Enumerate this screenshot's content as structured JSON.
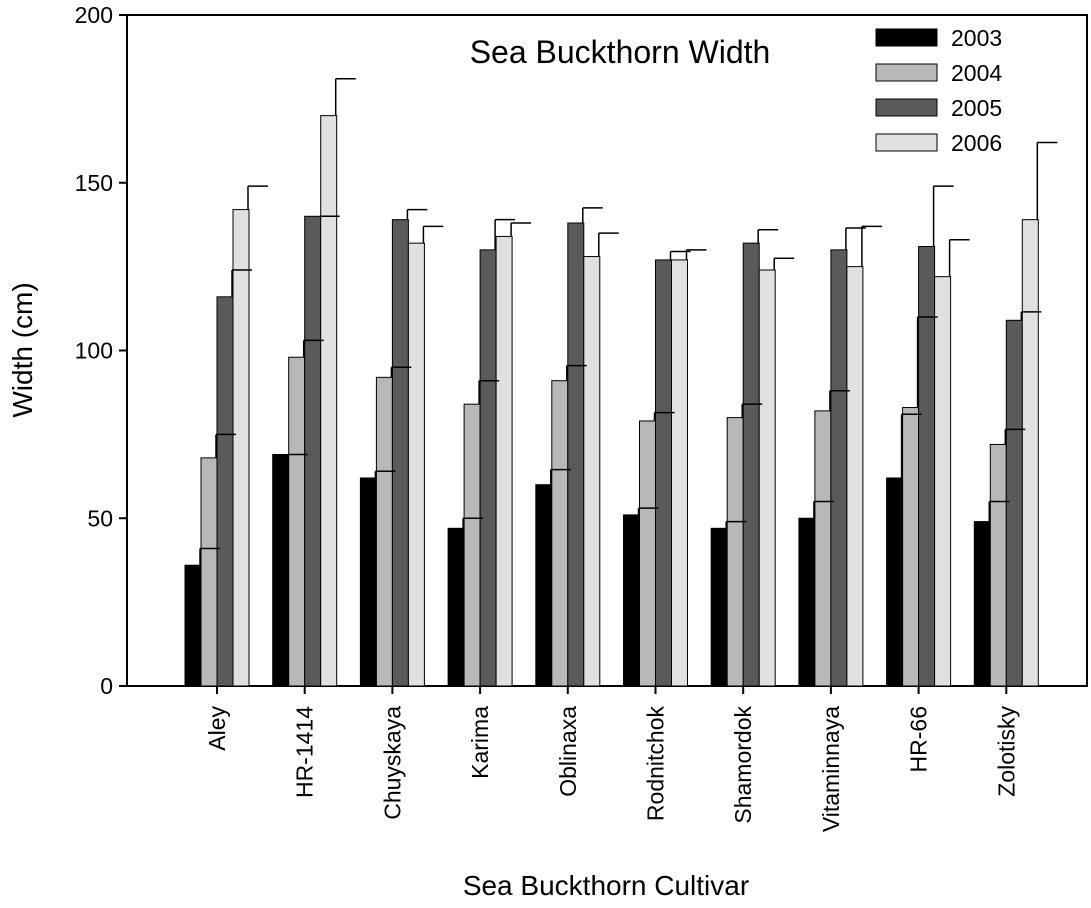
{
  "chart_data": {
    "type": "bar",
    "title": "Sea Buckthorn Width",
    "xlabel": "Sea Buckthorn Cultivar",
    "ylabel": "Width (cm)",
    "ylim": [
      0,
      200
    ],
    "yticks": [
      "0",
      "50",
      "100",
      "150",
      "200"
    ],
    "grid": false,
    "legend_position": "top-right",
    "categories": [
      "Aley",
      "HR-1414",
      "Chuyskaya",
      "Karima",
      "Oblinaxa",
      "Rodnitchok",
      "Shamordok",
      "Vitaminnaya",
      "HR-66",
      "Zolotisky"
    ],
    "series": [
      {
        "name": "2003",
        "color": "#000000",
        "values": [
          36,
          69,
          62,
          47,
          60,
          51,
          47,
          50,
          62,
          49
        ],
        "errors": [
          5,
          0,
          2,
          3,
          4.5,
          2,
          2,
          5,
          19,
          6
        ]
      },
      {
        "name": "2004",
        "color": "#b8b8b8",
        "values": [
          68,
          98,
          92,
          84,
          91,
          79,
          80,
          82,
          83,
          72
        ],
        "errors": [
          7,
          5,
          3,
          7,
          4.5,
          2.5,
          4,
          6,
          27,
          4.5
        ]
      },
      {
        "name": "2005",
        "color": "#5a5a5a",
        "values": [
          116,
          140,
          139,
          130,
          138,
          127,
          132,
          130,
          131,
          109
        ],
        "errors": [
          8,
          0,
          3,
          9,
          4.5,
          2.5,
          4,
          6.5,
          18,
          2.5
        ]
      },
      {
        "name": "2006",
        "color": "#e0e0e0",
        "values": [
          142,
          170,
          132,
          134,
          128,
          127,
          124,
          125,
          122,
          139
        ],
        "errors": [
          7,
          11,
          5,
          4,
          7,
          3,
          3.5,
          12,
          11,
          23
        ]
      }
    ]
  }
}
